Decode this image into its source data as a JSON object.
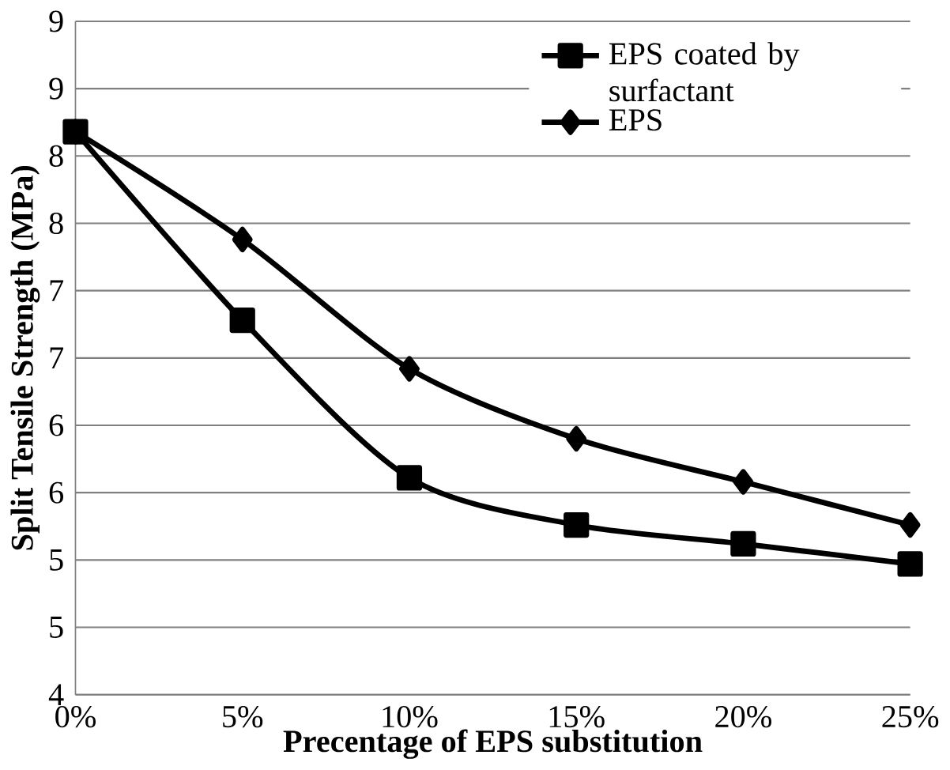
{
  "chart_data": {
    "type": "line",
    "xlabel": "Precentage of EPS substitution",
    "ylabel": "Split Tensile Strength (MPa)",
    "categories": [
      "0%",
      "5%",
      "10%",
      "15%",
      "20%",
      "25%"
    ],
    "series": [
      {
        "name": "EPS coated by surfactant",
        "color": "#000000",
        "marker": "square",
        "values": [
          8.18,
          6.78,
          5.61,
          5.26,
          5.12,
          4.97
        ]
      },
      {
        "name": "EPS",
        "color": "#000000",
        "marker": "diamond",
        "values": [
          8.18,
          7.38,
          6.42,
          5.9,
          5.58,
          5.26
        ]
      }
    ],
    "ylim": [
      4,
      9
    ],
    "yticks": [
      4,
      {
        "value": 4.5,
        "label": "5"
      },
      5,
      {
        "value": 5.5,
        "label": "6"
      },
      6,
      {
        "value": 6.5,
        "label": "7"
      },
      7,
      {
        "value": 7.5,
        "label": "8"
      },
      8,
      {
        "value": 8.5,
        "label": "9"
      },
      9
    ],
    "grid": "y",
    "legend": "top right",
    "line_style": "solid"
  }
}
